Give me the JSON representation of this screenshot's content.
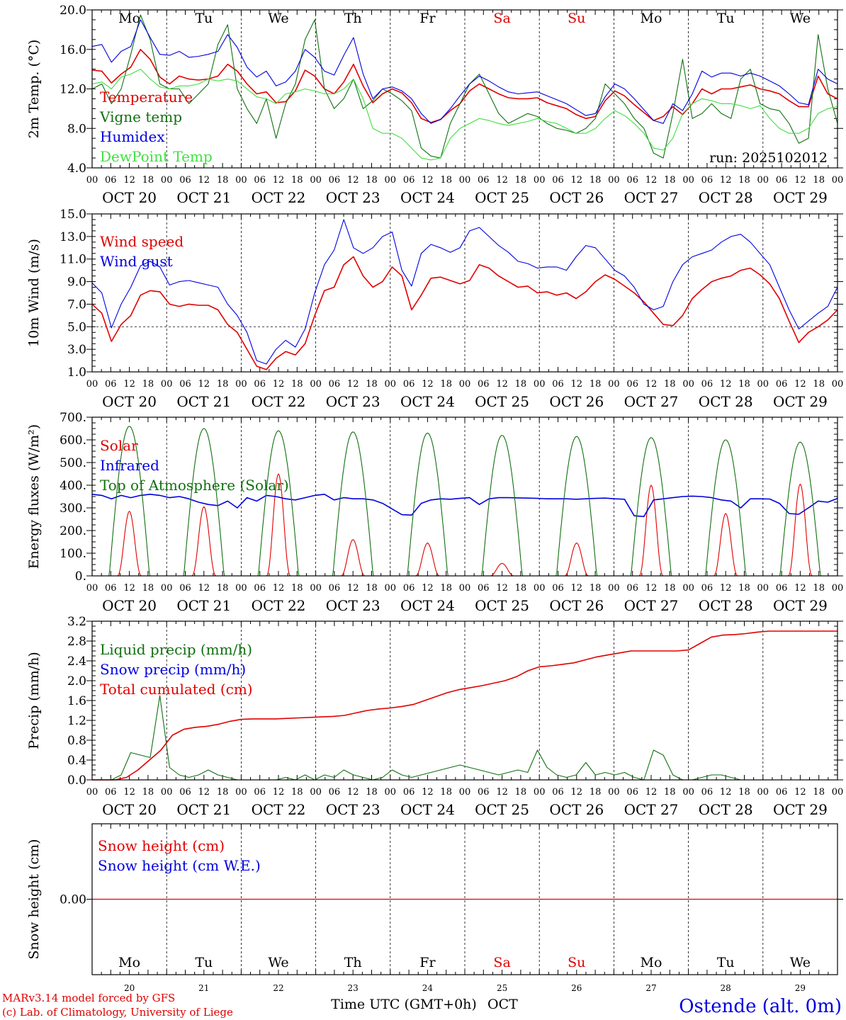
{
  "meteogram": {
    "run_label": "run: 2025102012",
    "location": "Ostende (alt. 0m)",
    "credit_line1": "MARv3.14 model forced by GFS",
    "credit_line2": "(c) Lab. of Climatology, University of Liege",
    "x_axis_title": "Time UTC (GMT+0h)",
    "month": "OCT",
    "hour_ticks": [
      "00",
      "06",
      "12",
      "18"
    ],
    "dates": [
      "OCT 20",
      "OCT 21",
      "OCT 22",
      "OCT 23",
      "OCT 24",
      "OCT 25",
      "OCT 26",
      "OCT 27",
      "OCT 28",
      "OCT 29"
    ],
    "day_numbers": [
      "20",
      "21",
      "22",
      "23",
      "24",
      "25",
      "26",
      "27",
      "28",
      "29"
    ],
    "weekdays": [
      "Mo",
      "Tu",
      "We",
      "Th",
      "Fr",
      "Sa",
      "Su",
      "Mo",
      "Tu",
      "We"
    ],
    "weekend_color": "#e00000",
    "weekday_color": "#000000"
  },
  "chart_data": [
    {
      "id": "temp",
      "type": "line",
      "ylabel": "2m Temp. (°C)",
      "ylim": [
        4,
        20
      ],
      "yticks": [
        "4.0",
        "8.0",
        "12.0",
        "16.0",
        "20.0"
      ],
      "series": [
        {
          "name": "Temperature",
          "color": "#e00000",
          "values": [
            13.9,
            13.8,
            12.6,
            13.5,
            14.2,
            16.0,
            15.0,
            13.2,
            12.5,
            13.3,
            13.0,
            12.9,
            13.0,
            13.3,
            14.5,
            13.8,
            12.5,
            11.5,
            11.7,
            10.6,
            10.7,
            11.8,
            13.9,
            13.3,
            12.0,
            11.5,
            12.7,
            14.5,
            12.3,
            10.6,
            11.5,
            12.0,
            11.6,
            10.6,
            9.0,
            8.6,
            8.9,
            9.8,
            10.5,
            11.8,
            12.5,
            12.0,
            11.5,
            11.1,
            11.0,
            11.0,
            11.1,
            10.6,
            10.3,
            10.0,
            9.4,
            9.0,
            9.2,
            10.8,
            11.8,
            11.3,
            10.4,
            9.6,
            8.8,
            9.2,
            10.2,
            9.4,
            10.5,
            12.0,
            11.5,
            12.0,
            12.0,
            12.2,
            12.4,
            12.0,
            11.8,
            11.5,
            10.8,
            10.2,
            10.2,
            13.3,
            11.5,
            11.0
          ]
        },
        {
          "name": "Vigne temp",
          "color": "#107010",
          "values": [
            12.0,
            12.5,
            10.5,
            12.0,
            15.5,
            19.5,
            17.0,
            12.5,
            12.0,
            12.0,
            10.5,
            11.5,
            12.5,
            16.5,
            18.5,
            12.0,
            10.0,
            8.5,
            11.0,
            7.0,
            10.5,
            12.5,
            17.0,
            19.0,
            12.0,
            10.0,
            11.0,
            13.0,
            10.0,
            10.8,
            12.0,
            11.5,
            10.8,
            9.8,
            6.0,
            5.2,
            5.0,
            8.5,
            10.5,
            12.5,
            13.5,
            11.5,
            9.5,
            8.5,
            9.0,
            9.5,
            9.2,
            8.5,
            8.0,
            7.8,
            7.5,
            8.0,
            9.0,
            12.5,
            11.5,
            10.5,
            9.0,
            8.0,
            5.5,
            5.0,
            9.5,
            15.0,
            9.0,
            9.5,
            10.5,
            9.5,
            9.0,
            13.0,
            14.0,
            10.5,
            10.0,
            9.8,
            8.5,
            6.5,
            7.0,
            17.5,
            12.0,
            8.5
          ]
        },
        {
          "name": "Humidex",
          "color": "#0000e0",
          "values": [
            16.3,
            16.5,
            14.7,
            15.8,
            16.3,
            19.0,
            17.2,
            15.5,
            15.4,
            15.8,
            15.2,
            15.3,
            15.5,
            15.8,
            17.5,
            16.2,
            14.2,
            13.2,
            13.8,
            12.3,
            12.7,
            13.8,
            16.0,
            15.2,
            13.8,
            13.4,
            15.4,
            17.2,
            13.5,
            11.0,
            12.0,
            12.2,
            11.8,
            11.0,
            9.5,
            8.5,
            8.9,
            10.0,
            11.3,
            12.5,
            13.3,
            12.8,
            12.2,
            11.7,
            11.5,
            11.6,
            11.7,
            11.3,
            10.9,
            10.5,
            9.9,
            9.3,
            9.5,
            11.2,
            12.5,
            12.0,
            11.0,
            9.9,
            8.8,
            8.5,
            10.5,
            9.8,
            11.5,
            13.8,
            13.2,
            13.6,
            13.6,
            13.3,
            13.6,
            13.3,
            12.8,
            12.3,
            11.5,
            10.6,
            10.4,
            14.0,
            13.0,
            12.5
          ]
        },
        {
          "name": "DewPoint Temp",
          "color": "#40e040",
          "values": [
            12.5,
            12.7,
            12.0,
            13.2,
            13.5,
            14.0,
            13.0,
            12.2,
            12.0,
            12.3,
            12.3,
            12.5,
            13.0,
            12.8,
            13.0,
            12.8,
            12.0,
            11.2,
            11.0,
            10.5,
            11.5,
            11.7,
            12.0,
            11.8,
            11.5,
            11.5,
            12.0,
            13.0,
            11.0,
            8.0,
            7.5,
            7.5,
            7.0,
            6.0,
            5.0,
            4.8,
            5.0,
            7.0,
            8.0,
            8.5,
            9.0,
            8.8,
            8.5,
            8.3,
            8.5,
            8.7,
            9.0,
            8.7,
            8.5,
            8.0,
            7.5,
            7.5,
            8.0,
            9.0,
            9.8,
            9.3,
            8.5,
            7.5,
            6.0,
            5.8,
            7.0,
            9.5,
            10.5,
            11.0,
            10.8,
            10.5,
            10.5,
            10.3,
            10.0,
            10.3,
            9.0,
            8.0,
            7.5,
            7.5,
            8.0,
            9.5,
            10.0,
            10.2
          ]
        }
      ]
    },
    {
      "id": "wind",
      "type": "line",
      "ylabel": "10m Wind (m/s)",
      "ylim": [
        1,
        15
      ],
      "yticks": [
        "1.0",
        "3.0",
        "5.0",
        "7.0",
        "9.0",
        "11.0",
        "13.0",
        "15.0"
      ],
      "reference_line": 5,
      "series": [
        {
          "name": "Wind speed",
          "color": "#e00000",
          "values": [
            7.0,
            6.2,
            3.7,
            5.2,
            6.0,
            7.8,
            8.2,
            8.1,
            7.0,
            6.8,
            7.0,
            6.9,
            6.9,
            6.5,
            5.2,
            4.5,
            3.0,
            1.5,
            1.2,
            2.2,
            2.8,
            2.5,
            3.5,
            6.0,
            8.2,
            8.5,
            10.5,
            11.2,
            9.5,
            8.5,
            9.0,
            10.3,
            9.5,
            6.5,
            7.8,
            9.3,
            9.4,
            9.1,
            8.8,
            9.1,
            10.5,
            10.2,
            9.5,
            9.0,
            8.5,
            8.6,
            8.0,
            8.1,
            7.8,
            8.0,
            7.5,
            8.1,
            9.0,
            9.6,
            9.2,
            8.6,
            8.0,
            7.2,
            6.2,
            5.2,
            5.1,
            6.0,
            7.5,
            8.3,
            9.0,
            9.3,
            9.5,
            10.0,
            10.2,
            9.6,
            8.8,
            7.5,
            5.5,
            3.6,
            4.5,
            5.0,
            5.6,
            6.5
          ]
        },
        {
          "name": "Wind gust",
          "color": "#0000e0",
          "values": [
            8.9,
            8.0,
            4.9,
            7.0,
            8.5,
            10.4,
            10.8,
            10.3,
            8.7,
            9.0,
            9.1,
            8.9,
            8.7,
            8.5,
            7.0,
            6.0,
            4.5,
            2.0,
            1.7,
            3.0,
            3.8,
            3.2,
            4.8,
            8.0,
            10.5,
            11.8,
            14.5,
            12.0,
            11.5,
            12.0,
            13.0,
            13.4,
            10.0,
            8.6,
            11.5,
            12.3,
            12.0,
            11.6,
            12.0,
            13.5,
            13.8,
            13.0,
            12.2,
            11.6,
            10.8,
            10.6,
            10.2,
            10.3,
            10.3,
            10.0,
            11.2,
            12.2,
            12.0,
            11.0,
            10.0,
            9.5,
            8.5,
            7.0,
            6.5,
            6.8,
            9.0,
            10.5,
            11.2,
            11.5,
            11.8,
            12.5,
            13.0,
            13.2,
            12.5,
            11.5,
            10.5,
            8.5,
            6.5,
            4.8,
            5.5,
            6.2,
            6.8,
            8.5
          ]
        }
      ]
    },
    {
      "id": "energy",
      "type": "line",
      "ylabel": "Energy fluxes (W/m²)",
      "ylim": [
        0,
        700
      ],
      "yticks": [
        "0.",
        "100.",
        "200.",
        "300.",
        "400.",
        "500.",
        "600.",
        "700."
      ],
      "series": [
        {
          "name": "Solar",
          "color": "#e00000",
          "peaks": [
            285,
            305,
            450,
            160,
            145,
            55,
            145,
            400,
            275,
            405
          ]
        },
        {
          "name": "Infrared",
          "color": "#0000e0",
          "values": [
            360,
            355,
            340,
            355,
            345,
            355,
            360,
            355,
            345,
            350,
            340,
            325,
            315,
            310,
            330,
            300,
            345,
            330,
            355,
            350,
            340,
            335,
            345,
            355,
            360,
            335,
            345,
            340,
            340,
            335,
            320,
            295,
            270,
            268,
            320,
            335,
            340,
            338,
            342,
            345,
            315,
            340,
            345,
            345,
            344,
            343,
            342,
            340,
            340,
            340,
            338,
            340,
            342,
            343,
            340,
            338,
            265,
            262,
            335,
            340,
            345,
            350,
            352,
            350,
            345,
            335,
            330,
            300,
            340,
            340,
            339,
            320,
            275,
            272,
            300,
            330,
            325,
            342
          ]
        },
        {
          "name": "Top of Atmosphere (Solar)",
          "color": "#107010",
          "peaks": [
            660,
            650,
            640,
            635,
            630,
            620,
            615,
            610,
            600,
            590
          ]
        }
      ]
    },
    {
      "id": "precip",
      "type": "line",
      "ylabel": "Precip (mm/h)",
      "ylim": [
        0,
        3.2
      ],
      "yticks": [
        "0.0",
        "0.4",
        "0.8",
        "1.2",
        "1.6",
        "2.0",
        "2.4",
        "2.8",
        "3.2"
      ],
      "series": [
        {
          "name": "Liquid precip (mm/h)",
          "color": "#107010",
          "values": [
            0,
            0,
            0,
            0.1,
            0.55,
            0.5,
            0.45,
            1.7,
            0.25,
            0.1,
            0.05,
            0.1,
            0.2,
            0.1,
            0.05,
            0,
            0,
            0,
            0,
            0,
            0.05,
            0,
            0.1,
            0,
            0.1,
            0.05,
            0.2,
            0.1,
            0.05,
            0,
            0.05,
            0.2,
            0.1,
            0.05,
            0.1,
            0.15,
            0.2,
            0.25,
            0.3,
            0.25,
            0.2,
            0.15,
            0.1,
            0.15,
            0.2,
            0.15,
            0.6,
            0.25,
            0.1,
            0.05,
            0.1,
            0.35,
            0.1,
            0.15,
            0.1,
            0.15,
            0.05,
            0,
            0.6,
            0.5,
            0.1,
            0,
            0,
            0.05,
            0.1,
            0.1,
            0.05,
            0,
            0,
            0,
            0,
            0,
            0,
            0,
            0,
            0,
            0,
            0
          ]
        },
        {
          "name": "Snow precip (mm/h)",
          "color": "#0000e0",
          "values": [
            0,
            0,
            0,
            0,
            0,
            0,
            0,
            0,
            0,
            0
          ]
        },
        {
          "name": "Total cumulated (cm)",
          "color": "#e00000",
          "values": [
            0,
            0,
            0,
            0.05,
            0.2,
            0.4,
            0.6,
            0.9,
            1.02,
            1.06,
            1.08,
            1.12,
            1.18,
            1.22,
            1.23,
            1.23,
            1.23,
            1.24,
            1.25,
            1.26,
            1.27,
            1.28,
            1.3,
            1.35,
            1.4,
            1.43,
            1.45,
            1.48,
            1.52,
            1.6,
            1.68,
            1.76,
            1.82,
            1.86,
            1.9,
            1.95,
            2.0,
            2.08,
            2.2,
            2.28,
            2.3,
            2.33,
            2.36,
            2.42,
            2.48,
            2.52,
            2.56,
            2.6,
            2.6,
            2.6,
            2.6,
            2.6,
            2.62,
            2.75,
            2.88,
            2.92,
            2.93,
            2.95,
            2.98,
            3.0,
            3.0,
            3.0,
            3.0,
            3.0,
            3.0,
            3.0
          ]
        }
      ]
    },
    {
      "id": "snow",
      "type": "line",
      "ylabel": "Snow height (cm)",
      "ytick_center": "0.00",
      "series": [
        {
          "name": "Snow height (cm)",
          "color": "#e00000",
          "values": [
            0,
            0
          ]
        },
        {
          "name": "Snow height (cm W.E.)",
          "color": "#0000e0",
          "values": [
            0,
            0
          ]
        }
      ]
    }
  ]
}
